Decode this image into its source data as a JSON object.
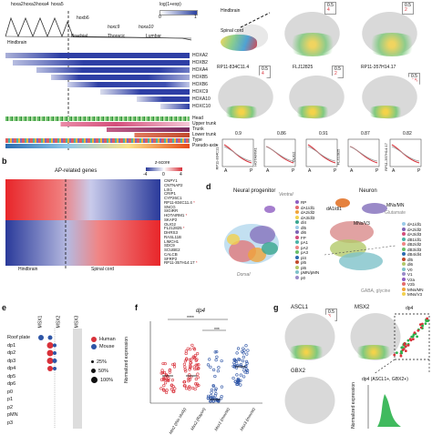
{
  "panel_a": {
    "hox_genes_top": [
      "hoxa2",
      "hoxa3",
      "hoxa4",
      "hoxa5"
    ],
    "hox_other": [
      "hoxb6",
      "hoxc9",
      "hoxa10"
    ],
    "legend_title": "log(1+exp)",
    "legend_ticks": [
      "0",
      "1"
    ],
    "regions": [
      "Hindbrain",
      "Brachial",
      "Thoracic",
      "Lumbar"
    ],
    "genes": [
      "HOXA2",
      "HOXB2",
      "HOXA4",
      "HOXB5",
      "HOXB6",
      "HOXC9",
      "HOXA10",
      "HOXC10"
    ],
    "tracks": [
      "Head",
      "Upper trunk",
      "Trunk",
      "Lower trunk",
      "Type",
      "Pseudo-axis"
    ]
  },
  "panel_b": {
    "letter": "b",
    "title": "AP-related genes",
    "zscore_label": "z-score",
    "zscore_ticks": [
      "-4",
      "0",
      "4"
    ],
    "genes": [
      "CNPY1",
      "CNTNAP2",
      "LIX1",
      "CRIP1",
      "CYP26C1",
      "RP11-834C11.4",
      "SNCG",
      "SIGIRR",
      "HOTAIRM1",
      "SKAP2",
      "OLIG2",
      "FLJ12825",
      "DHRS3",
      "RASL11B",
      "LIMCH1",
      "SDC9",
      "SCUBE2",
      "CALCB",
      "SFRP2",
      "RP11-357H14.17"
    ],
    "starred": [
      "RP11-834C11.4",
      "HOTAIRM1",
      "FLJ12825",
      "RP11-357H14.17"
    ],
    "x_left": "Hindbrain",
    "x_right": "Spinal cord"
  },
  "panel_c": {
    "labels": {
      "hindbrain": "Hindbrain",
      "spinal": "Spinal cord"
    },
    "legend1": [
      "0.5",
      "4"
    ],
    "legend2": [
      "0.5",
      "2"
    ],
    "legend3": [
      "0.5",
      "3.5"
    ],
    "maps": [
      "RP11-834C11.4",
      "FLJ12825",
      "RP11-357H14.17"
    ],
    "corr_values": [
      "0.9",
      "0.86",
      "0.91",
      "0.87",
      "0.82"
    ],
    "curve_genes": [
      "RP11-834C11.4",
      "HOTAIRM1",
      "OLIG2",
      "FLJ12825",
      "RP11-357H14.17"
    ],
    "axis_a": "A",
    "axis_p": "P"
  },
  "panel_d": {
    "letter": "d",
    "title_left": "Neural progenitor",
    "title_right": "Neuron",
    "dorsal": "Dorsal",
    "ventral": "Ventral",
    "rp": "RP",
    "clusters_np": [
      "dp1",
      "dp2",
      "dp3",
      "dp4",
      "dp5",
      "dp6",
      "FP",
      "RP",
      "pMN",
      "p0",
      "p1",
      "p2",
      "p3",
      "pMN/pMN"
    ],
    "legend_np": [
      "RP",
      "dA1/dl1",
      "dA2/dl2",
      "dA3/dl3",
      "dl4",
      "dl5",
      "dl6",
      "FP",
      "pA1",
      "pA2",
      "pA3",
      "pl4",
      "pl5",
      "pl6",
      "pMN/pMN",
      "p0"
    ],
    "clusters_n": [
      "dA1/dl1",
      "MNs/V3",
      "MNs/MN",
      "dA2/dl2",
      "dA3/dl3",
      "dB1/dl1",
      "dB3/dl5",
      "dB4/dl6",
      "V0",
      "V1",
      "V2b",
      "V2a",
      "dl4"
    ],
    "glutamate": "Glutamate",
    "gaba": "GABA, glycine",
    "legend_n": [
      "dA1/dl1",
      "dA2/dl2",
      "dA3/dl3",
      "dB1/dl1",
      "dB2/dl2",
      "dB3/dl3",
      "dB4/dl4",
      "dl5",
      "dl6",
      "V0",
      "V1",
      "V2a",
      "V2b",
      "MNs/MN",
      "MNs/V3"
    ]
  },
  "panel_e": {
    "letter": "e",
    "columns": [
      "MSX1",
      "MSX2",
      "MSX3"
    ],
    "rows": [
      "Roof plate",
      "dp1",
      "dp2",
      "dp3",
      "dp4",
      "dp5",
      "dp6",
      "p0",
      "p1",
      "p2",
      "pMN",
      "p3"
    ],
    "legend_colors": [
      {
        "label": "Human",
        "color": "#d8313a"
      },
      {
        "label": "Mouse",
        "color": "#2e55a6"
      }
    ],
    "legend_sizes": [
      "25%",
      "50%",
      "100%"
    ]
  },
  "panel_f": {
    "letter": "f",
    "title": "dp4",
    "sig1": "****",
    "sig2": "***",
    "ylabel": "Normalized expression",
    "groups": [
      "Mix2 (this study)",
      "Msx2 (Rayon)",
      "Msx1 (mouse)",
      "Msx3 (mouse)"
    ],
    "colors": [
      "#d8313a",
      "#d8313a",
      "#2e55a6",
      "#2e55a6"
    ]
  },
  "panel_g": {
    "letter": "g",
    "genes": [
      "ASCL1",
      "MSX2",
      "GBX2"
    ],
    "legend": [
      "0.5",
      "3"
    ],
    "inset": "dp4",
    "plot_title": "dp4 (ASCL1+, GBX2+)",
    "ylabel": "Normalized expression"
  }
}
